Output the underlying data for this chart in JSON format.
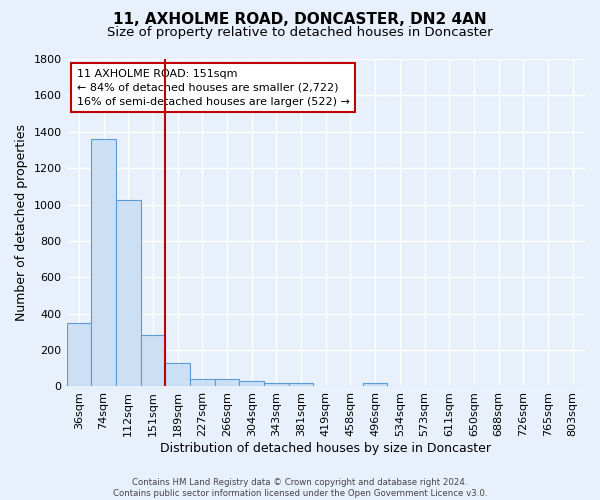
{
  "title": "11, AXHOLME ROAD, DONCASTER, DN2 4AN",
  "subtitle": "Size of property relative to detached houses in Doncaster",
  "xlabel": "Distribution of detached houses by size in Doncaster",
  "ylabel": "Number of detached properties",
  "footer_line1": "Contains HM Land Registry data © Crown copyright and database right 2024.",
  "footer_line2": "Contains public sector information licensed under the Open Government Licence v3.0.",
  "bar_labels": [
    "36sqm",
    "74sqm",
    "112sqm",
    "151sqm",
    "189sqm",
    "227sqm",
    "266sqm",
    "304sqm",
    "343sqm",
    "381sqm",
    "419sqm",
    "458sqm",
    "496sqm",
    "534sqm",
    "573sqm",
    "611sqm",
    "650sqm",
    "688sqm",
    "726sqm",
    "765sqm",
    "803sqm"
  ],
  "bar_values": [
    350,
    1360,
    1025,
    285,
    130,
    43,
    43,
    30,
    18,
    18,
    0,
    0,
    17,
    0,
    0,
    0,
    0,
    0,
    0,
    0,
    0
  ],
  "bar_color": "#cce0f5",
  "bar_edge_color": "#5b9bd5",
  "vline_x_index": 3,
  "vline_color": "#c00000",
  "annotation_line1": "11 AXHOLME ROAD: 151sqm",
  "annotation_line2": "← 84% of detached houses are smaller (2,722)",
  "annotation_line3": "16% of semi-detached houses are larger (522) →",
  "annotation_box_color": "white",
  "annotation_box_edge_color": "#c00000",
  "ylim": [
    0,
    1800
  ],
  "yticks": [
    0,
    200,
    400,
    600,
    800,
    1000,
    1200,
    1400,
    1600,
    1800
  ],
  "bg_color": "#e8f1fb",
  "grid_color": "#ffffff",
  "title_fontsize": 11,
  "subtitle_fontsize": 9.5,
  "annotation_fontsize": 8,
  "axis_label_fontsize": 9,
  "tick_fontsize": 8
}
